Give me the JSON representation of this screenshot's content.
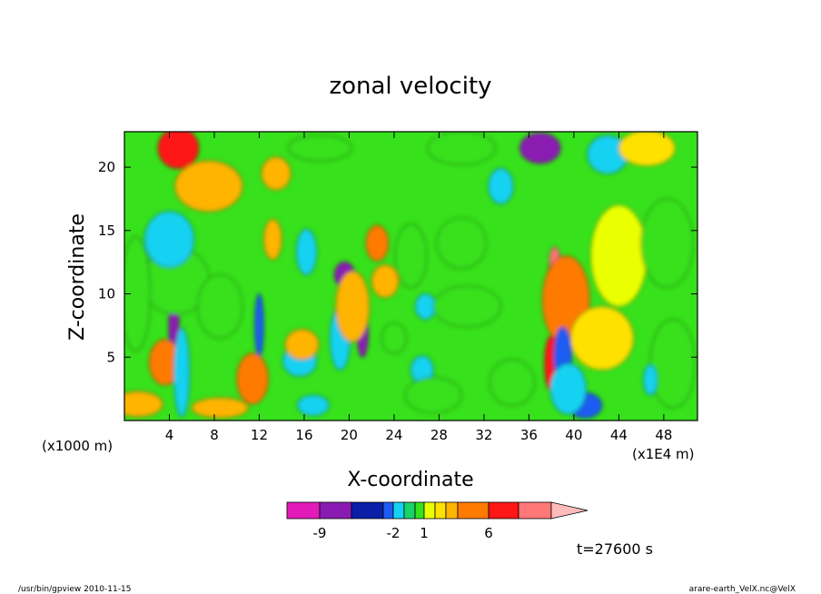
{
  "chart_data": {
    "type": "heatmap",
    "title": "zonal velocity",
    "xlabel": "X-coordinate",
    "ylabel": "Z-coordinate",
    "x_unit_left": "(x1000 m)",
    "x_unit_right": "(x1E4 m)",
    "xlim": [
      0,
      51
    ],
    "ylim": [
      0,
      22.8
    ],
    "x_ticks": [
      4,
      8,
      12,
      16,
      20,
      24,
      28,
      32,
      36,
      40,
      44,
      48
    ],
    "y_ticks": [
      5,
      10,
      15,
      20
    ],
    "contour_levels": [
      -12,
      -9,
      -7,
      -5,
      -2,
      -1,
      0,
      1,
      2,
      3,
      4,
      6,
      8,
      10
    ],
    "colorbar": {
      "colors": [
        "#e21ab8",
        "#8a1bb2",
        "#0a1ea8",
        "#1f5cf2",
        "#15d2f2",
        "#17d46a",
        "#37e11b",
        "#eaff00",
        "#ffe100",
        "#ffb400",
        "#ff7a00",
        "#ff1616",
        "#ff7777",
        "#ffbbbb"
      ],
      "tick_labels": [
        "-9",
        "-2",
        "1",
        "6"
      ]
    },
    "time_label": "t=27600 s",
    "blobs": [
      {
        "x": 4.4,
        "z": 7.5,
        "rx": 0.45,
        "rz": 3.3,
        "v": -9
      },
      {
        "x": 4.9,
        "z": 4.2,
        "rx": 0.35,
        "rz": 2.0,
        "v": 6
      },
      {
        "x": 3.6,
        "z": 4.6,
        "rx": 1.4,
        "rz": 1.8,
        "v": 4
      },
      {
        "x": 5.1,
        "z": 3.8,
        "rx": 0.7,
        "rz": 3.5,
        "v": -2
      },
      {
        "x": 4.6,
        "z": 11,
        "rx": 3.0,
        "rz": 2.6,
        "v": 0
      },
      {
        "x": 4.0,
        "z": 14.3,
        "rx": 2.2,
        "rz": 2.2,
        "v": -2
      },
      {
        "x": 1.2,
        "z": 1.3,
        "rx": 2.2,
        "rz": 1.0,
        "v": 3
      },
      {
        "x": 4.8,
        "z": 21.5,
        "rx": 1.8,
        "rz": 1.6,
        "v": 7
      },
      {
        "x": 7.5,
        "z": 18.5,
        "rx": 3.0,
        "rz": 2.0,
        "v": 3
      },
      {
        "x": 12.0,
        "z": 7.5,
        "rx": 0.4,
        "rz": 2.5,
        "v": -4
      },
      {
        "x": 11.4,
        "z": 3.3,
        "rx": 1.4,
        "rz": 2.0,
        "v": 4
      },
      {
        "x": 8.5,
        "z": 1.0,
        "rx": 2.5,
        "rz": 0.8,
        "v": 3
      },
      {
        "x": 13.2,
        "z": 14.3,
        "rx": 0.8,
        "rz": 1.6,
        "v": 3
      },
      {
        "x": 13.5,
        "z": 19.5,
        "rx": 1.3,
        "rz": 1.3,
        "v": 3
      },
      {
        "x": 15.6,
        "z": 4.7,
        "rx": 1.5,
        "rz": 1.2,
        "v": -2
      },
      {
        "x": 16.8,
        "z": 1.2,
        "rx": 1.4,
        "rz": 0.8,
        "v": -2
      },
      {
        "x": 16.2,
        "z": 13.3,
        "rx": 0.9,
        "rz": 1.8,
        "v": -2
      },
      {
        "x": 15.8,
        "z": 6.0,
        "rx": 1.5,
        "rz": 1.2,
        "v": 3
      },
      {
        "x": 17.4,
        "z": 21.5,
        "rx": 2.8,
        "rz": 1.0,
        "v": 0
      },
      {
        "x": 19.6,
        "z": 11.5,
        "rx": 0.9,
        "rz": 1.0,
        "v": -9
      },
      {
        "x": 19.2,
        "z": 6.5,
        "rx": 0.9,
        "rz": 2.5,
        "v": -2
      },
      {
        "x": 21.2,
        "z": 7.0,
        "rx": 0.5,
        "rz": 2.0,
        "v": -9
      },
      {
        "x": 20.3,
        "z": 9.0,
        "rx": 1.5,
        "rz": 2.8,
        "v": 3
      },
      {
        "x": 22.5,
        "z": 14.0,
        "rx": 1.0,
        "rz": 1.4,
        "v": 4
      },
      {
        "x": 23.2,
        "z": 11.0,
        "rx": 1.2,
        "rz": 1.3,
        "v": 3
      },
      {
        "x": 24.0,
        "z": 6.5,
        "rx": 1.1,
        "rz": 1.2,
        "v": 0
      },
      {
        "x": 25.5,
        "z": 13.0,
        "rx": 1.4,
        "rz": 2.5,
        "v": 0
      },
      {
        "x": 26.5,
        "z": 4.0,
        "rx": 1.0,
        "rz": 1.1,
        "v": -2
      },
      {
        "x": 26.8,
        "z": 9.0,
        "rx": 0.9,
        "rz": 1.0,
        "v": -2
      },
      {
        "x": 27.5,
        "z": 2.0,
        "rx": 2.5,
        "rz": 1.4,
        "v": 0
      },
      {
        "x": 30.5,
        "z": 9.0,
        "rx": 3.0,
        "rz": 1.6,
        "v": 0
      },
      {
        "x": 30.0,
        "z": 14.0,
        "rx": 2.2,
        "rz": 2.0,
        "v": 0
      },
      {
        "x": 30.0,
        "z": 21.5,
        "rx": 3.0,
        "rz": 1.3,
        "v": 0
      },
      {
        "x": 33.5,
        "z": 18.5,
        "rx": 1.1,
        "rz": 1.4,
        "v": -2
      },
      {
        "x": 37.0,
        "z": 21.5,
        "rx": 1.8,
        "rz": 1.2,
        "v": -9
      },
      {
        "x": 38.0,
        "z": 10.0,
        "rx": 0.4,
        "rz": 2.5,
        "v": -9
      },
      {
        "x": 38.3,
        "z": 12.5,
        "rx": 0.5,
        "rz": 1.2,
        "v": 8
      },
      {
        "x": 39.3,
        "z": 9.5,
        "rx": 2.1,
        "rz": 3.5,
        "v": 4
      },
      {
        "x": 38.0,
        "z": 4.5,
        "rx": 0.6,
        "rz": 2.2,
        "v": 6
      },
      {
        "x": 39.0,
        "z": 5.0,
        "rx": 0.8,
        "rz": 2.4,
        "v": -4
      },
      {
        "x": 41.0,
        "z": 1.2,
        "rx": 1.5,
        "rz": 1.0,
        "v": -5
      },
      {
        "x": 39.5,
        "z": 2.5,
        "rx": 1.6,
        "rz": 2.0,
        "v": -2
      },
      {
        "x": 42.5,
        "z": 6.5,
        "rx": 2.8,
        "rz": 2.5,
        "v": 2
      },
      {
        "x": 44.0,
        "z": 13.0,
        "rx": 2.5,
        "rz": 4.0,
        "v": 1
      },
      {
        "x": 43.0,
        "z": 21.0,
        "rx": 1.8,
        "rz": 1.5,
        "v": -2
      },
      {
        "x": 46.5,
        "z": 21.5,
        "rx": 2.5,
        "rz": 1.4,
        "v": 2
      },
      {
        "x": 48.3,
        "z": 14.0,
        "rx": 2.3,
        "rz": 3.5,
        "v": 0
      },
      {
        "x": 48.8,
        "z": 4.5,
        "rx": 2.0,
        "rz": 3.5,
        "v": 0
      },
      {
        "x": 46.8,
        "z": 3.2,
        "rx": 0.6,
        "rz": 1.2,
        "v": -2
      },
      {
        "x": 1.0,
        "z": 10.0,
        "rx": 1.3,
        "rz": 4.5,
        "v": 0
      },
      {
        "x": 8.5,
        "z": 9.0,
        "rx": 2.0,
        "rz": 2.5,
        "v": 0
      },
      {
        "x": 34.5,
        "z": 3.0,
        "rx": 2.0,
        "rz": 1.8,
        "v": 0
      }
    ]
  },
  "footer": {
    "left": "/usr/bin/gpview   2010-11-15",
    "right": "arare-earth_VelX.nc@VelX"
  }
}
